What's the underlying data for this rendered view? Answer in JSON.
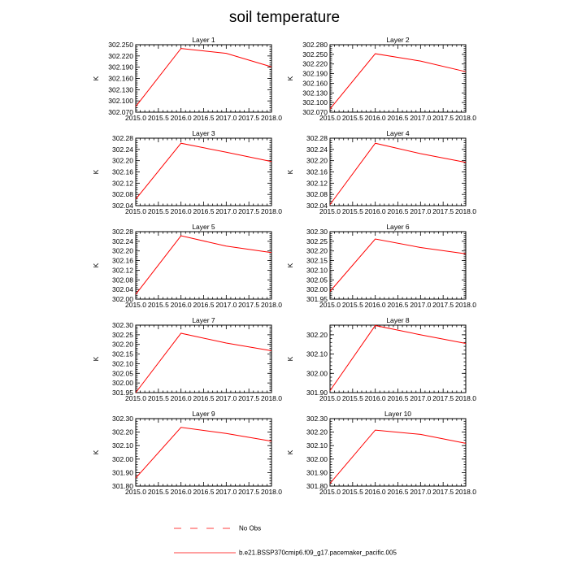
{
  "chart_data": {
    "type": "line",
    "title": "soil temperature",
    "ylabel": "K",
    "x": [
      2015.0,
      2016.0,
      2017.0,
      2018.0
    ],
    "xlim": [
      2015.0,
      2018.0
    ],
    "xtick_labels": [
      "2015.0",
      "2015.5",
      "2016.0",
      "2016.5",
      "2017.0",
      "2017.5",
      "2018.0"
    ],
    "panels": [
      {
        "title": "Layer 1",
        "ylim": [
          302.07,
          302.25
        ],
        "ytick_labels": [
          "302.070",
          "302.100",
          "302.130",
          "302.160",
          "302.190",
          "302.220",
          "302.250"
        ],
        "values": [
          302.085,
          302.24,
          302.227,
          302.191
        ]
      },
      {
        "title": "Layer 2",
        "ylim": [
          302.07,
          302.28
        ],
        "ytick_labels": [
          "302.070",
          "302.100",
          "302.130",
          "302.160",
          "302.190",
          "302.220",
          "302.250",
          "302.280"
        ],
        "values": [
          302.08,
          302.252,
          302.229,
          302.196
        ]
      },
      {
        "title": "Layer 3",
        "ylim": [
          302.04,
          302.28
        ],
        "ytick_labels": [
          "302.04",
          "302.08",
          "302.12",
          "302.16",
          "302.20",
          "302.24",
          "302.28"
        ],
        "values": [
          302.063,
          302.262,
          302.23,
          302.197
        ]
      },
      {
        "title": "Layer 4",
        "ylim": [
          302.04,
          302.28
        ],
        "ytick_labels": [
          "302.04",
          "302.08",
          "302.12",
          "302.16",
          "302.20",
          "302.24",
          "302.28"
        ],
        "values": [
          302.044,
          302.262,
          302.225,
          302.194
        ]
      },
      {
        "title": "Layer 5",
        "ylim": [
          302.0,
          302.28
        ],
        "ytick_labels": [
          "302.00",
          "302.04",
          "302.08",
          "302.12",
          "302.16",
          "302.20",
          "302.24",
          "302.28"
        ],
        "values": [
          302.02,
          302.263,
          302.22,
          302.193
        ]
      },
      {
        "title": "Layer 6",
        "ylim": [
          301.95,
          302.3
        ],
        "ytick_labels": [
          "301.95",
          "302.00",
          "302.05",
          "302.10",
          "302.15",
          "302.20",
          "302.25",
          "302.30"
        ],
        "values": [
          301.99,
          302.262,
          302.218,
          302.185
        ]
      },
      {
        "title": "Layer 7",
        "ylim": [
          301.95,
          302.3
        ],
        "ytick_labels": [
          "301.95",
          "302.00",
          "302.05",
          "302.10",
          "302.15",
          "302.20",
          "302.25",
          "302.30"
        ],
        "values": [
          301.95,
          302.258,
          302.207,
          302.167
        ]
      },
      {
        "title": "Layer 8",
        "ylim": [
          301.9,
          302.25
        ],
        "ytick_labels": [
          "301.90",
          "302.00",
          "302.10",
          "302.20"
        ],
        "values": [
          301.91,
          302.248,
          302.2,
          302.155
        ]
      },
      {
        "title": "Layer 9",
        "ylim": [
          301.8,
          302.3
        ],
        "ytick_labels": [
          "301.80",
          "301.90",
          "302.00",
          "302.10",
          "302.20",
          "302.30"
        ],
        "values": [
          301.86,
          302.235,
          302.19,
          302.133
        ]
      },
      {
        "title": "Layer 10",
        "ylim": [
          301.8,
          302.3
        ],
        "ytick_labels": [
          "301.80",
          "301.90",
          "302.00",
          "302.10",
          "302.20",
          "302.30"
        ],
        "values": [
          301.82,
          302.215,
          302.183,
          302.117
        ]
      }
    ],
    "legend": [
      {
        "label": "No Obs",
        "style": "dashed",
        "color": "#ff0000"
      },
      {
        "label": "b.e21.BSSP370cmip6.f09_g17.pacemaker_pacific.005",
        "style": "solid",
        "color": "#ff0000"
      }
    ],
    "colors": {
      "series": "#ff0000",
      "axes": "#000000",
      "background": "#ffffff"
    }
  }
}
